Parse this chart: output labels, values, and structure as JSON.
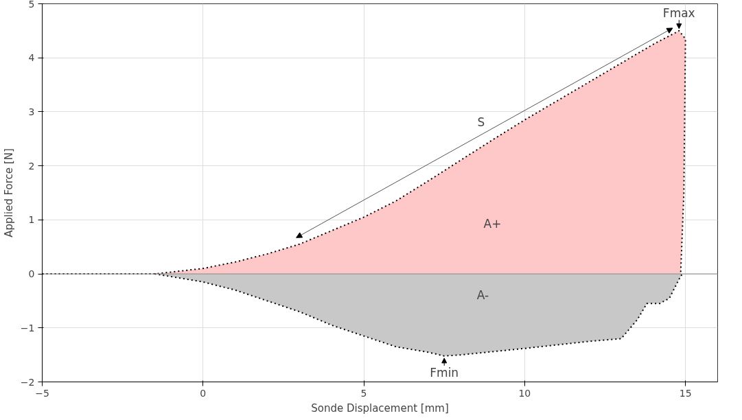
{
  "chart_data": {
    "type": "area",
    "xlabel": "Sonde Displacement [mm]",
    "ylabel": "Applied Force [N]",
    "series": [
      {
        "color": "#ffc8c8",
        "x": [
          -5,
          -1.5,
          0,
          1,
          2,
          3,
          4,
          5,
          6,
          7,
          8,
          9,
          10,
          11,
          12,
          13,
          14,
          14.8,
          15,
          14.95,
          14.85
        ],
        "values": [
          0,
          0,
          0.1,
          0.22,
          0.37,
          0.55,
          0.8,
          1.05,
          1.35,
          1.72,
          2.1,
          2.48,
          2.85,
          3.2,
          3.55,
          3.9,
          4.25,
          4.5,
          4.35,
          1.5,
          0
        ]
      },
      {
        "color": "#c8c8c8",
        "x": [
          -1.5,
          0,
          1,
          2,
          3,
          4,
          5,
          6,
          7,
          7.5,
          8,
          10,
          12,
          13,
          13.5,
          13.8,
          14.2,
          14.5,
          14.8,
          14.9
        ],
        "values": [
          0,
          -0.15,
          -0.3,
          -0.5,
          -0.7,
          -0.95,
          -1.15,
          -1.35,
          -1.45,
          -1.52,
          -1.5,
          -1.38,
          -1.25,
          -1.2,
          -0.85,
          -0.55,
          -0.55,
          -0.45,
          -0.1,
          0
        ]
      }
    ],
    "annotations": [
      "Fmax",
      "Fmin",
      "S",
      "A+",
      "A-"
    ],
    "xlim": [
      -5,
      16
    ],
    "ylim": [
      -2,
      5
    ],
    "xticks": [
      {
        "value": -5,
        "label": "−5"
      },
      0,
      5,
      10,
      15
    ],
    "yticks": [
      {
        "value": -2,
        "label": "−2"
      },
      {
        "value": -1,
        "label": "−1"
      },
      0,
      1,
      2,
      3,
      4,
      5
    ],
    "grid": true,
    "line_style": "dotted",
    "marker": "none"
  }
}
